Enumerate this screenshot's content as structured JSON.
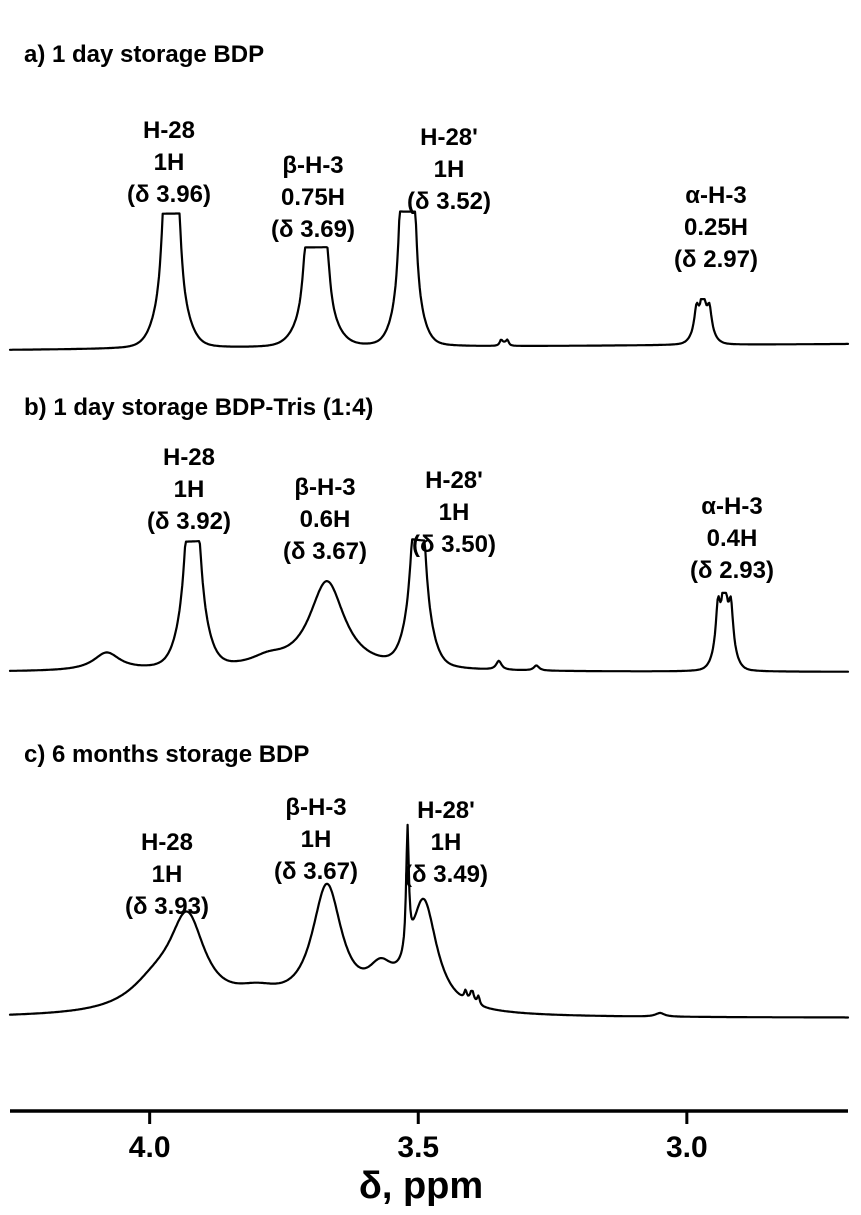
{
  "chart_data": {
    "type": "line",
    "xlabel": "δ, ppm",
    "x_reversed": true,
    "xlim": [
      4.26,
      2.7
    ],
    "x_ticks": [
      4.0,
      3.5,
      3.0
    ],
    "x_tick_labels": [
      "4.0",
      "3.5",
      "3.0"
    ],
    "panels": [
      {
        "title": "a) 1 day storage BDP",
        "baseline": 0.05,
        "peaks": [
          {
            "center": 3.96,
            "shape": "multiplet",
            "height": 1.0,
            "width": 0.03,
            "lines": [
              -0.012,
              0.0,
              0.012
            ],
            "weights": [
              0.95,
              1.0,
              0.95
            ],
            "sub_width": 0.007
          },
          {
            "center": 3.69,
            "shape": "multiplet",
            "height": 0.74,
            "width": 0.035,
            "lines": [
              -0.02,
              -0.01,
              0.0,
              0.01,
              0.02
            ],
            "weights": [
              0.6,
              0.8,
              1.0,
              0.8,
              0.6
            ],
            "sub_width": 0.007
          },
          {
            "center": 3.52,
            "shape": "multiplet",
            "height": 1.0,
            "width": 0.026,
            "lines": [
              -0.012,
              0.0,
              0.012
            ],
            "weights": [
              0.95,
              1.0,
              0.95
            ],
            "sub_width": 0.006
          },
          {
            "center": 2.97,
            "shape": "multiplet",
            "height": 0.34,
            "width": 0.018,
            "lines": [
              -0.012,
              0.0,
              0.012
            ],
            "weights": [
              0.7,
              1.0,
              0.7
            ],
            "sub_width": 0.005
          },
          {
            "center": 3.34,
            "shape": "multiplet",
            "height": 0.05,
            "width": 0.006,
            "lines": [
              -0.006,
              0.006
            ],
            "weights": [
              1,
              1
            ],
            "sub_width": 0.003
          }
        ],
        "labels": [
          {
            "lines": [
              "H-28",
              "1H",
              "(δ 3.96)"
            ],
            "at": 3.96
          },
          {
            "lines": [
              "β-H-3",
              "0.75H",
              "(δ 3.69)"
            ],
            "at": 3.69
          },
          {
            "lines": [
              "H-28'",
              "1H",
              "(δ 3.52)"
            ],
            "at": 3.52
          },
          {
            "lines": [
              "α-H-3",
              "0.25H",
              "(δ 2.97)"
            ],
            "at": 2.97
          }
        ]
      },
      {
        "title": "b) 1 day storage BDP-Tris (1:4)",
        "baseline": 0.05,
        "peaks": [
          {
            "center": 3.92,
            "shape": "multiplet",
            "height": 1.0,
            "width": 0.028,
            "lines": [
              -0.008,
              0.008
            ],
            "weights": [
              0.97,
              1.0
            ],
            "sub_width": 0.01
          },
          {
            "center": 3.67,
            "shape": "broad",
            "height": 0.7,
            "width": 0.04
          },
          {
            "center": 3.5,
            "shape": "multiplet",
            "height": 1.0,
            "width": 0.026,
            "lines": [
              -0.007,
              0.007
            ],
            "weights": [
              1.0,
              0.97
            ],
            "sub_width": 0.009
          },
          {
            "center": 2.93,
            "shape": "multiplet",
            "height": 0.62,
            "width": 0.018,
            "lines": [
              -0.012,
              0.0,
              0.012
            ],
            "weights": [
              0.75,
              1.0,
              0.75
            ],
            "sub_width": 0.005
          },
          {
            "center": 4.08,
            "shape": "broad",
            "height": 0.14,
            "width": 0.03
          },
          {
            "center": 3.78,
            "shape": "broad",
            "height": 0.07,
            "width": 0.04
          },
          {
            "center": 3.35,
            "shape": "broad",
            "height": 0.07,
            "width": 0.006
          },
          {
            "center": 3.28,
            "shape": "broad",
            "height": 0.04,
            "width": 0.006
          }
        ],
        "labels": [
          {
            "lines": [
              "H-28",
              "1H",
              "(δ 3.92)"
            ],
            "at": 3.92
          },
          {
            "lines": [
              "β-H-3",
              "0.6H",
              "(δ 3.67)"
            ],
            "at": 3.67
          },
          {
            "lines": [
              "H-28'",
              "1H",
              "(δ 3.50)"
            ],
            "at": 3.5
          },
          {
            "lines": [
              "α-H-3",
              "0.4H",
              "(δ 2.93)"
            ],
            "at": 2.93
          }
        ]
      },
      {
        "title": "c) 6 months storage BDP",
        "baseline": 0.05,
        "peaks": [
          {
            "center": 3.93,
            "shape": "broad",
            "height": 0.72,
            "width": 0.04
          },
          {
            "center": 3.67,
            "shape": "broad",
            "height": 1.0,
            "width": 0.034
          },
          {
            "center": 3.49,
            "shape": "broad",
            "height": 0.88,
            "width": 0.03
          },
          {
            "center": 3.52,
            "shape": "broad",
            "height": 1.0,
            "width": 0.003
          },
          {
            "center": 3.57,
            "shape": "broad",
            "height": 0.25,
            "width": 0.03
          },
          {
            "center": 3.99,
            "shape": "broad",
            "height": 0.2,
            "width": 0.06
          },
          {
            "center": 3.8,
            "shape": "broad",
            "height": 0.13,
            "width": 0.06
          },
          {
            "center": 3.4,
            "shape": "multiplet",
            "height": 0.1,
            "width": 0.006,
            "lines": [
              -0.012,
              0.0,
              0.012
            ],
            "weights": [
              1,
              1,
              1
            ],
            "sub_width": 0.003
          },
          {
            "center": 3.05,
            "shape": "broad",
            "height": 0.03,
            "width": 0.01
          }
        ],
        "labels": [
          {
            "lines": [
              "H-28",
              "1H",
              "(δ 3.93)"
            ],
            "at": 3.93
          },
          {
            "lines": [
              "β-H-3",
              "1H",
              "(δ 3.67)"
            ],
            "at": 3.67
          },
          {
            "lines": [
              "H-28'",
              "1H",
              "(δ 3.49)"
            ],
            "at": 3.49
          }
        ]
      }
    ]
  }
}
